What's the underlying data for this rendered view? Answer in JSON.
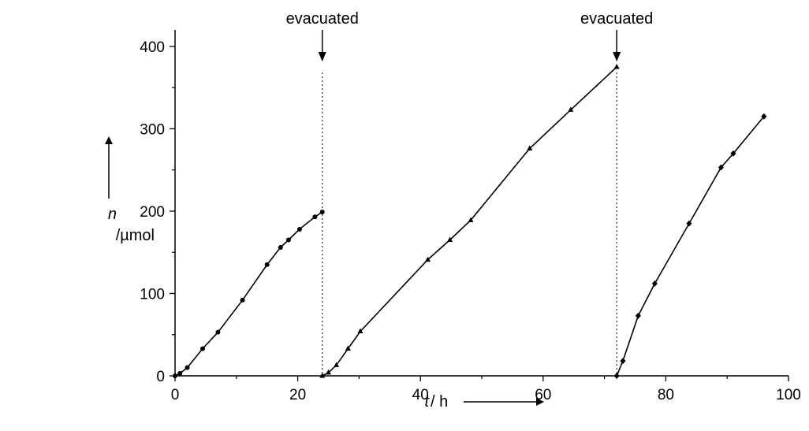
{
  "chart_data": {
    "type": "line",
    "title": "",
    "x_axis": {
      "label_symbol": "t",
      "label_unit": "/ h",
      "range": [
        0,
        100
      ],
      "ticks": [
        0,
        20,
        40,
        60,
        80,
        100
      ],
      "tick_labels": [
        "0",
        "20",
        "40",
        "60",
        "80",
        "100"
      ]
    },
    "y_axis": {
      "label_symbol": "n",
      "label_unit": "/µmol",
      "range": [
        0,
        420
      ],
      "ticks": [
        0,
        100,
        200,
        300,
        400
      ],
      "tick_labels": [
        "0",
        "100",
        "200",
        "300",
        "400"
      ]
    },
    "grid": false,
    "legend": "none",
    "series": [
      {
        "marker": "circle",
        "x": [
          0,
          0.8,
          2,
          4.5,
          7,
          11,
          15,
          17.2,
          18.5,
          20.3,
          22.8,
          24
        ],
        "y": [
          0,
          3,
          10,
          33,
          53,
          92,
          135,
          156,
          165,
          178,
          193,
          199
        ]
      },
      {
        "marker": "triangle",
        "x": [
          24,
          25,
          26.3,
          28.2,
          30.2,
          41.2,
          44.8,
          48.2,
          57.8,
          64.5,
          72
        ],
        "y": [
          0,
          4,
          13,
          33,
          54,
          141,
          165,
          189,
          276,
          323,
          375
        ]
      },
      {
        "marker": "diamond",
        "x": [
          72,
          73,
          75.5,
          78.2,
          83.8,
          89,
          91,
          96
        ],
        "y": [
          0,
          18,
          73,
          112,
          185,
          253,
          270,
          315
        ]
      }
    ],
    "annotations": [
      {
        "text": "evacuated",
        "x": 24
      },
      {
        "text": "evacuated",
        "x": 72
      }
    ]
  }
}
